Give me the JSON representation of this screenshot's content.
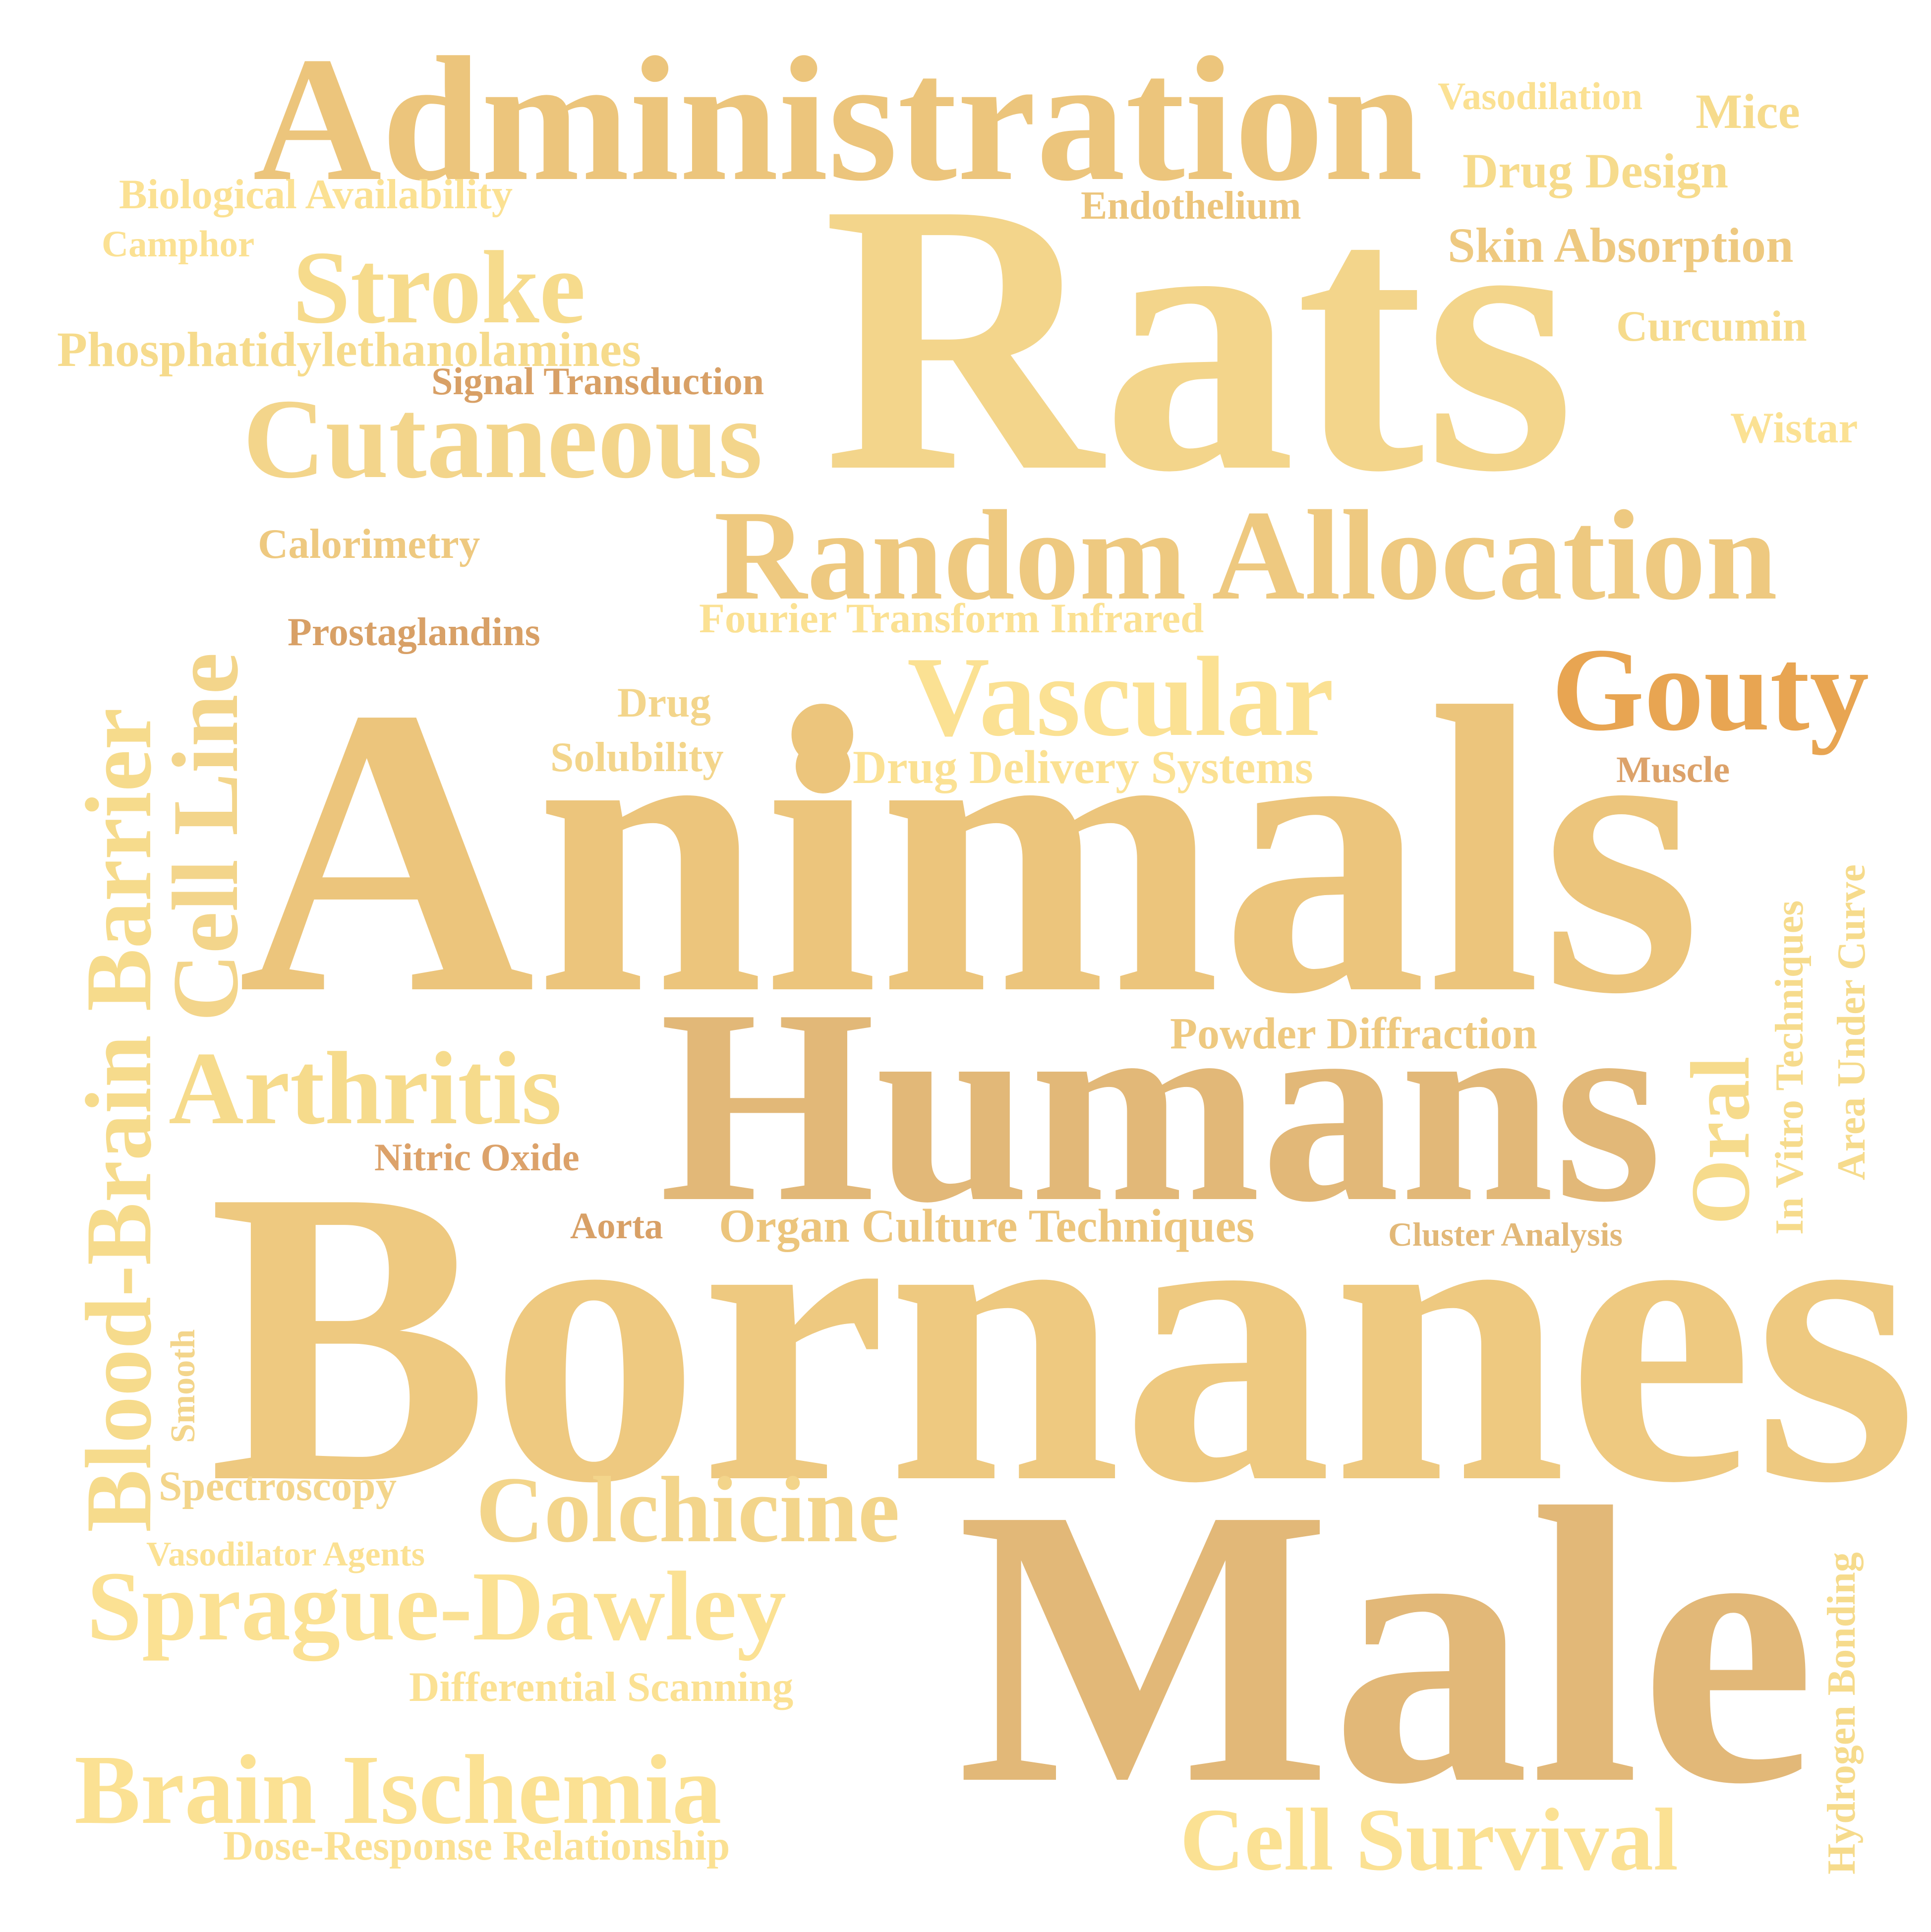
{
  "words": {
    "administration": "Administration",
    "rats": "Rats",
    "animals": "Animals",
    "humans": "Humans",
    "bornanes": "Bornanes",
    "male": "Male",
    "random_allocation": "Random Allocation",
    "vascular": "Vascular",
    "gouty": "Gouty",
    "cutaneous": "Cutaneous",
    "stroke": "Stroke",
    "arthritis": "Arthritis",
    "colchicine": "Colchicine",
    "sprague_dawley": "Sprague-Dawley",
    "brain_ischemia": "Brain Ischemia",
    "cell_survival": "Cell Survival",
    "blood_brain_barrier": "Blood-Brain Barrier",
    "cell_line": "Cell Line",
    "oral": "Oral",
    "vasodilation": "Vasodilation",
    "mice": "Mice",
    "drug_design": "Drug Design",
    "endothelium": "Endothelium",
    "biological_availability": "Biological Availability",
    "camphor": "Camphor",
    "skin_absorption": "Skin Absorption",
    "curcumin": "Curcumin",
    "phosphatidylethanolamines": "Phosphatidylethanolamines",
    "signal_transduction": "Signal Transduction",
    "wistar": "Wistar",
    "calorimetry": "Calorimetry",
    "fourier_transform_infrared": "Fourier Transform Infrared",
    "prostaglandins": "Prostaglandins",
    "drug": "Drug",
    "solubility": "Solubility",
    "drug_delivery_systems": "Drug Delivery Systems",
    "muscle": "Muscle",
    "in_vitro_techniques": "In Vitro Techniques",
    "area_under_curve": "Area Under Curve",
    "powder_diffraction": "Powder Diffraction",
    "nitric_oxide": "Nitric Oxide",
    "aorta": "Aorta",
    "organ_culture_techniques": "Organ Culture Techniques",
    "cluster_analysis": "Cluster Analysis",
    "smooth": "Smooth",
    "spectroscopy": "Spectroscopy",
    "vasodilator_agents": "Vasodilator Agents",
    "differential_scanning": "Differential Scanning",
    "dose_response_relationship": "Dose-Response Relationship",
    "hydrogen_bonding": "Hydrogen Bonding"
  },
  "palette": {
    "main_gold": "#ecc57c",
    "light_gold": "#f3d58b",
    "pale_gold": "#f6db8c",
    "pale_yellow": "#fbe193",
    "tan": "#e2b878",
    "orange": "#e8a552",
    "brown_gold": "#dca26a"
  }
}
